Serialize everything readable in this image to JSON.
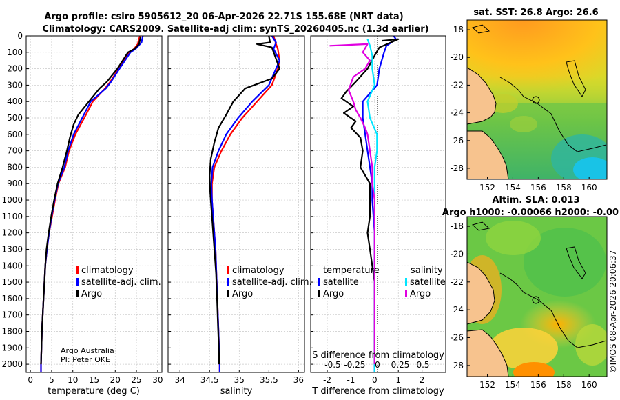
{
  "title": {
    "line1": "Argo profile: csiro 5905612_20 06-Apr-2026 22.71S 155.68E (NRT data)",
    "line2": "Climatology: CARS2009. Satellite-adj clim: synTS_20260405.nc (1.3d earlier)"
  },
  "colors": {
    "climatology": "#ff0000",
    "satellite_adj": "#0000ff",
    "argo": "#000000",
    "sat_diff_sal": "#00e5ff",
    "argo_diff_sal": "#e000e0",
    "grid": "#c8c8c8",
    "land": "#f7c38e"
  },
  "depth_axis": {
    "ticks": [
      0,
      100,
      200,
      300,
      400,
      500,
      600,
      700,
      800,
      900,
      1000,
      1100,
      1200,
      1300,
      1400,
      1500,
      1600,
      1700,
      1800,
      1900,
      2000
    ],
    "ylim": [
      0,
      2050
    ]
  },
  "credit": {
    "line1": "Argo Australia",
    "line2": "PI: Peter OKE"
  },
  "side_label": "©IMOS 08-Apr-2026 20:06:37",
  "chart_data": [
    {
      "id": "temperature",
      "type": "line",
      "xlabel": "temperature (deg C)",
      "xlim": [
        -1,
        31
      ],
      "xticks": [
        0,
        5,
        10,
        15,
        20,
        25,
        30
      ],
      "legend": [
        "climatology",
        "satellite-adj. clim.",
        "Argo"
      ],
      "series": [
        {
          "name": "climatology",
          "points": [
            [
              25.8,
              0
            ],
            [
              25.3,
              50
            ],
            [
              24.4,
              80
            ],
            [
              23.3,
              100
            ],
            [
              20.8,
              200
            ],
            [
              18.8,
              280
            ],
            [
              17.6,
              320
            ],
            [
              14.7,
              400
            ],
            [
              12.7,
              500
            ],
            [
              10.6,
              600
            ],
            [
              9.1,
              700
            ],
            [
              8.2,
              800
            ],
            [
              6.6,
              900
            ],
            [
              5.8,
              1000
            ],
            [
              5.1,
              1100
            ],
            [
              4.4,
              1200
            ],
            [
              3.9,
              1300
            ],
            [
              3.5,
              1400
            ],
            [
              3.3,
              1500
            ],
            [
              3.1,
              1600
            ],
            [
              2.9,
              1700
            ],
            [
              2.7,
              1800
            ],
            [
              2.6,
              1900
            ],
            [
              2.5,
              2000
            ],
            [
              2.5,
              2050
            ]
          ]
        },
        {
          "name": "satellite-adj. clim.",
          "points": [
            [
              26.5,
              0
            ],
            [
              26.2,
              40
            ],
            [
              24.8,
              80
            ],
            [
              23.6,
              100
            ],
            [
              21.0,
              200
            ],
            [
              19.0,
              280
            ],
            [
              17.8,
              320
            ],
            [
              14.2,
              400
            ],
            [
              12.2,
              500
            ],
            [
              10.2,
              600
            ],
            [
              8.9,
              700
            ],
            [
              8.0,
              800
            ],
            [
              6.5,
              900
            ],
            [
              5.7,
              1000
            ],
            [
              5.0,
              1100
            ],
            [
              4.4,
              1200
            ],
            [
              3.9,
              1300
            ],
            [
              3.5,
              1400
            ],
            [
              3.3,
              1500
            ],
            [
              3.1,
              1600
            ],
            [
              2.9,
              1700
            ],
            [
              2.7,
              1800
            ],
            [
              2.6,
              1900
            ],
            [
              2.5,
              2000
            ],
            [
              2.5,
              2050
            ]
          ]
        },
        {
          "name": "Argo",
          "points": [
            [
              26.0,
              5
            ],
            [
              25.6,
              50
            ],
            [
              24.5,
              80
            ],
            [
              23.0,
              100
            ],
            [
              20.5,
              200
            ],
            [
              18.0,
              280
            ],
            [
              16.3,
              320
            ],
            [
              13.8,
              400
            ],
            [
              11.3,
              480
            ],
            [
              10.2,
              540
            ],
            [
              9.3,
              620
            ],
            [
              8.6,
              700
            ],
            [
              7.6,
              800
            ],
            [
              6.4,
              900
            ],
            [
              5.6,
              1000
            ],
            [
              4.9,
              1100
            ],
            [
              4.3,
              1200
            ],
            [
              3.8,
              1300
            ],
            [
              3.5,
              1400
            ],
            [
              3.3,
              1500
            ],
            [
              3.1,
              1600
            ],
            [
              2.9,
              1700
            ],
            [
              2.7,
              1800
            ],
            [
              2.6,
              1900
            ],
            [
              2.5,
              2000
            ]
          ]
        }
      ]
    },
    {
      "id": "salinity",
      "type": "line",
      "xlabel": "salinity",
      "xlim": [
        33.8,
        36.1
      ],
      "xticks": [
        34,
        34.5,
        35,
        35.5,
        36
      ],
      "xtick_labels": [
        "34",
        "34.5",
        "35",
        "35.5",
        "36"
      ],
      "legend": [
        "climatology",
        "satellite-adj. clim.",
        "Argo"
      ],
      "series": [
        {
          "name": "climatology",
          "points": [
            [
              35.58,
              0
            ],
            [
              35.62,
              50
            ],
            [
              35.65,
              80
            ],
            [
              35.68,
              150
            ],
            [
              35.65,
              200
            ],
            [
              35.55,
              300
            ],
            [
              35.3,
              400
            ],
            [
              35.05,
              500
            ],
            [
              34.85,
              600
            ],
            [
              34.7,
              700
            ],
            [
              34.58,
              800
            ],
            [
              34.54,
              900
            ],
            [
              34.54,
              1000
            ],
            [
              34.56,
              1100
            ],
            [
              34.58,
              1200
            ],
            [
              34.6,
              1300
            ],
            [
              34.61,
              1400
            ],
            [
              34.62,
              1500
            ],
            [
              34.63,
              1600
            ],
            [
              34.64,
              1700
            ],
            [
              34.65,
              1800
            ],
            [
              34.66,
              1900
            ],
            [
              34.67,
              2000
            ],
            [
              34.67,
              2050
            ]
          ]
        },
        {
          "name": "satellite-adj. clim.",
          "points": [
            [
              35.55,
              0
            ],
            [
              35.62,
              40
            ],
            [
              35.58,
              80
            ],
            [
              35.68,
              150
            ],
            [
              35.62,
              200
            ],
            [
              35.5,
              300
            ],
            [
              35.22,
              400
            ],
            [
              34.98,
              500
            ],
            [
              34.78,
              600
            ],
            [
              34.65,
              700
            ],
            [
              34.55,
              800
            ],
            [
              34.53,
              900
            ],
            [
              34.54,
              1000
            ],
            [
              34.56,
              1100
            ],
            [
              34.58,
              1200
            ],
            [
              34.6,
              1300
            ],
            [
              34.61,
              1400
            ],
            [
              34.62,
              1500
            ],
            [
              34.63,
              1600
            ],
            [
              34.64,
              1700
            ],
            [
              34.65,
              1800
            ],
            [
              34.66,
              1900
            ],
            [
              34.67,
              2000
            ],
            [
              34.67,
              2050
            ]
          ]
        },
        {
          "name": "Argo",
          "points": [
            [
              35.5,
              0
            ],
            [
              35.52,
              40
            ],
            [
              35.3,
              50
            ],
            [
              35.55,
              70
            ],
            [
              35.6,
              120
            ],
            [
              35.68,
              200
            ],
            [
              35.55,
              260
            ],
            [
              35.1,
              320
            ],
            [
              34.9,
              400
            ],
            [
              34.78,
              480
            ],
            [
              34.65,
              560
            ],
            [
              34.58,
              650
            ],
            [
              34.52,
              750
            ],
            [
              34.5,
              850
            ],
            [
              34.51,
              950
            ],
            [
              34.53,
              1050
            ],
            [
              34.55,
              1150
            ],
            [
              34.57,
              1250
            ],
            [
              34.59,
              1350
            ],
            [
              34.61,
              1450
            ],
            [
              34.62,
              1550
            ],
            [
              34.63,
              1650
            ],
            [
              34.64,
              1750
            ],
            [
              34.65,
              1850
            ],
            [
              34.66,
              1950
            ],
            [
              34.66,
              2000
            ]
          ]
        }
      ]
    },
    {
      "id": "differences",
      "type": "line",
      "xlabel": "T difference from climatology",
      "xlim": [
        -2.7,
        3.0
      ],
      "xticks": [
        -2,
        -1,
        0,
        1,
        2
      ],
      "x2label": "S difference from climatology",
      "x2ticks": [
        "-0.5",
        "-0.25",
        "0",
        "0.25",
        "0.5"
      ],
      "legend_left_title": "temperature",
      "legend_right_title": "salinity",
      "legend_left": [
        "satellite",
        "Argo"
      ],
      "legend_right": [
        "satellite",
        "Argo"
      ],
      "series": [
        {
          "name": "temperature satellite",
          "points": [
            [
              0.8,
              0
            ],
            [
              0.9,
              20
            ],
            [
              0.5,
              60
            ],
            [
              0.4,
              100
            ],
            [
              0.2,
              200
            ],
            [
              0.1,
              300
            ],
            [
              -0.5,
              400
            ],
            [
              -0.5,
              500
            ],
            [
              -0.4,
              600
            ],
            [
              -0.3,
              700
            ],
            [
              -0.2,
              800
            ],
            [
              -0.1,
              900
            ],
            [
              -0.1,
              1000
            ],
            [
              0.0,
              1200
            ],
            [
              0.0,
              2050
            ]
          ]
        },
        {
          "name": "temperature Argo",
          "points": [
            [
              0.3,
              30
            ],
            [
              1.0,
              20
            ],
            [
              0.2,
              70
            ],
            [
              0.0,
              120
            ],
            [
              -0.3,
              200
            ],
            [
              -0.8,
              280
            ],
            [
              -1.2,
              340
            ],
            [
              -1.4,
              380
            ],
            [
              -0.9,
              430
            ],
            [
              -1.3,
              470
            ],
            [
              -0.8,
              520
            ],
            [
              -1.0,
              560
            ],
            [
              -0.6,
              620
            ],
            [
              -0.5,
              700
            ],
            [
              -0.6,
              800
            ],
            [
              -0.2,
              900
            ],
            [
              -0.2,
              1000
            ],
            [
              -0.2,
              1100
            ],
            [
              -0.3,
              1200
            ],
            [
              -0.2,
              1300
            ],
            [
              -0.1,
              1400
            ],
            [
              0.0,
              1500
            ],
            [
              0.0,
              1700
            ],
            [
              0.0,
              2000
            ]
          ]
        },
        {
          "name": "salinity satellite",
          "points": [
            [
              -0.3,
              20
            ],
            [
              -0.2,
              60
            ],
            [
              -0.1,
              120
            ],
            [
              -0.1,
              200
            ],
            [
              0.0,
              300
            ],
            [
              -0.3,
              400
            ],
            [
              -0.2,
              500
            ],
            [
              0.1,
              600
            ],
            [
              0.1,
              700
            ],
            [
              0.0,
              800
            ],
            [
              0.0,
              1000
            ],
            [
              0.0,
              2050
            ]
          ]
        },
        {
          "name": "salinity Argo",
          "points": [
            [
              -1.9,
              60
            ],
            [
              -0.3,
              50
            ],
            [
              -0.5,
              100
            ],
            [
              -0.2,
              150
            ],
            [
              -0.4,
              200
            ],
            [
              -0.9,
              250
            ],
            [
              -1.1,
              330
            ],
            [
              -0.9,
              400
            ],
            [
              -0.8,
              450
            ],
            [
              -0.6,
              500
            ],
            [
              -0.4,
              560
            ],
            [
              -0.3,
              600
            ],
            [
              -0.2,
              700
            ],
            [
              -0.1,
              800
            ],
            [
              -0.1,
              900
            ],
            [
              0.0,
              1000
            ],
            [
              0.0,
              2000
            ]
          ]
        }
      ]
    },
    {
      "id": "sst_map",
      "type": "heatmap",
      "title": "sat. SST: 26.8 Argo: 26.6",
      "xticks": [
        152,
        154,
        156,
        158,
        160
      ],
      "yticks": [
        -18,
        -20,
        -22,
        -24,
        -26,
        -28
      ],
      "xlim": [
        150.4,
        161.4
      ],
      "ylim": [
        -28.8,
        -17.3
      ],
      "argo_position": [
        155.68,
        -22.71
      ]
    },
    {
      "id": "sla_map",
      "type": "heatmap",
      "title": "Altim. SLA: 0.013",
      "subtitle": "Argo h1000: -0.00066 h2000: -0.00",
      "xticks": [
        152,
        154,
        156,
        158,
        160
      ],
      "yticks": [
        -18,
        -20,
        -22,
        -24,
        -26,
        -28
      ],
      "xlim": [
        150.4,
        161.4
      ],
      "ylim": [
        -28.8,
        -17.3
      ],
      "argo_position": [
        155.68,
        -22.71
      ]
    }
  ]
}
